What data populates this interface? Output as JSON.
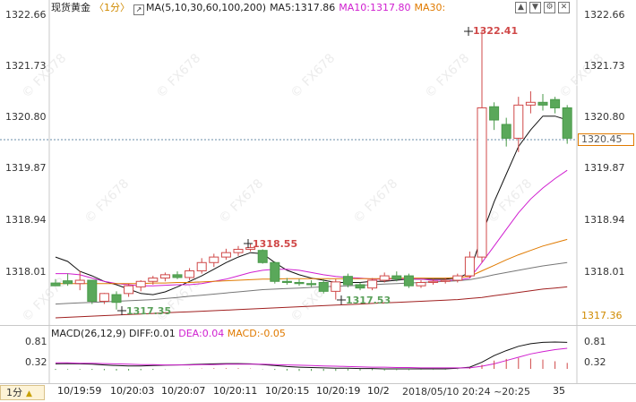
{
  "header": {
    "symbol": "现货黄金",
    "interval": "〈1分〉",
    "ma_title": "MA(5,10,30,60,100,200)",
    "ma5": "MA5:1317.86",
    "ma10": "MA10:1317.80",
    "ma30": "MA30:"
  },
  "price_axis": {
    "left_ticks": [
      "1322.66",
      "1321.73",
      "1320.80",
      "1319.87",
      "1318.94",
      "1318.01"
    ],
    "right_ticks": [
      "1322.66",
      "1321.73",
      "1320.80",
      "1319.87",
      "1318.94",
      "1318.01"
    ],
    "last_price": "1320.45",
    "right_bottom_label": "1317.36"
  },
  "annotations": {
    "high": "1322.41",
    "mid_high": "1318.55",
    "low1": "1317.35",
    "low2": "1317.53"
  },
  "macd": {
    "title": "MACD(26,12,9)",
    "diff": "DIFF:0.01",
    "dea": "DEA:0.04",
    "macd": "MACD:-0.05",
    "left_ticks": [
      "0.81",
      "0.32"
    ],
    "right_ticks": [
      "0.81",
      "0.32"
    ]
  },
  "footer": {
    "timeframe": "1分",
    "x_labels": [
      "10/19:59",
      "10/20:03",
      "10/20:07",
      "10/20:11",
      "10/20:15",
      "10/20:19",
      "10/2"
    ],
    "range_label": "2018/05/10 20:24 ~20:25",
    "tail_label": "35"
  },
  "chart_data": {
    "type": "candlestick",
    "ylim": [
      1317.3,
      1322.75
    ],
    "candles": [
      {
        "o": 1317.83,
        "h": 1317.9,
        "l": 1317.78,
        "c": 1317.78
      },
      {
        "o": 1317.87,
        "h": 1318.0,
        "l": 1317.78,
        "c": 1317.82
      },
      {
        "o": 1317.82,
        "h": 1318.05,
        "l": 1317.7,
        "c": 1317.88
      },
      {
        "o": 1317.88,
        "h": 1317.88,
        "l": 1317.45,
        "c": 1317.5
      },
      {
        "o": 1317.5,
        "h": 1317.65,
        "l": 1317.45,
        "c": 1317.64
      },
      {
        "o": 1317.62,
        "h": 1317.68,
        "l": 1317.35,
        "c": 1317.48
      },
      {
        "o": 1317.64,
        "h": 1317.82,
        "l": 1317.58,
        "c": 1317.78
      },
      {
        "o": 1317.76,
        "h": 1317.88,
        "l": 1317.68,
        "c": 1317.86
      },
      {
        "o": 1317.86,
        "h": 1317.96,
        "l": 1317.8,
        "c": 1317.92
      },
      {
        "o": 1317.92,
        "h": 1318.02,
        "l": 1317.86,
        "c": 1317.98
      },
      {
        "o": 1317.98,
        "h": 1318.04,
        "l": 1317.9,
        "c": 1317.93
      },
      {
        "o": 1317.93,
        "h": 1318.1,
        "l": 1317.88,
        "c": 1318.05
      },
      {
        "o": 1318.05,
        "h": 1318.28,
        "l": 1318.0,
        "c": 1318.2
      },
      {
        "o": 1318.2,
        "h": 1318.36,
        "l": 1318.12,
        "c": 1318.3
      },
      {
        "o": 1318.3,
        "h": 1318.45,
        "l": 1318.25,
        "c": 1318.38
      },
      {
        "o": 1318.38,
        "h": 1318.5,
        "l": 1318.32,
        "c": 1318.44
      },
      {
        "o": 1318.44,
        "h": 1318.55,
        "l": 1318.4,
        "c": 1318.47
      },
      {
        "o": 1318.42,
        "h": 1318.44,
        "l": 1318.18,
        "c": 1318.2
      },
      {
        "o": 1318.2,
        "h": 1318.22,
        "l": 1317.82,
        "c": 1317.86
      },
      {
        "o": 1317.86,
        "h": 1317.92,
        "l": 1317.8,
        "c": 1317.84
      },
      {
        "o": 1317.84,
        "h": 1317.9,
        "l": 1317.78,
        "c": 1317.82
      },
      {
        "o": 1317.82,
        "h": 1317.88,
        "l": 1317.76,
        "c": 1317.8
      },
      {
        "o": 1317.84,
        "h": 1317.9,
        "l": 1317.64,
        "c": 1317.68
      },
      {
        "o": 1317.68,
        "h": 1317.9,
        "l": 1317.53,
        "c": 1317.85
      },
      {
        "o": 1317.95,
        "h": 1318.0,
        "l": 1317.75,
        "c": 1317.8
      },
      {
        "o": 1317.8,
        "h": 1317.84,
        "l": 1317.7,
        "c": 1317.74
      },
      {
        "o": 1317.74,
        "h": 1317.92,
        "l": 1317.7,
        "c": 1317.88
      },
      {
        "o": 1317.88,
        "h": 1318.02,
        "l": 1317.84,
        "c": 1317.96
      },
      {
        "o": 1317.96,
        "h": 1318.04,
        "l": 1317.86,
        "c": 1317.9
      },
      {
        "o": 1317.96,
        "h": 1318.0,
        "l": 1317.74,
        "c": 1317.78
      },
      {
        "o": 1317.78,
        "h": 1317.88,
        "l": 1317.74,
        "c": 1317.84
      },
      {
        "o": 1317.84,
        "h": 1317.9,
        "l": 1317.8,
        "c": 1317.86
      },
      {
        "o": 1317.86,
        "h": 1317.92,
        "l": 1317.82,
        "c": 1317.88
      },
      {
        "o": 1317.88,
        "h": 1318.0,
        "l": 1317.84,
        "c": 1317.96
      },
      {
        "o": 1317.96,
        "h": 1318.4,
        "l": 1317.92,
        "c": 1318.3
      },
      {
        "o": 1318.3,
        "h": 1322.41,
        "l": 1318.2,
        "c": 1321.0
      },
      {
        "o": 1321.02,
        "h": 1321.1,
        "l": 1320.6,
        "c": 1320.78
      },
      {
        "o": 1320.7,
        "h": 1320.82,
        "l": 1320.3,
        "c": 1320.45
      },
      {
        "o": 1320.45,
        "h": 1321.2,
        "l": 1320.2,
        "c": 1321.05
      },
      {
        "o": 1321.05,
        "h": 1321.3,
        "l": 1320.9,
        "c": 1321.1
      },
      {
        "o": 1321.1,
        "h": 1321.25,
        "l": 1320.95,
        "c": 1321.05
      },
      {
        "o": 1321.15,
        "h": 1321.2,
        "l": 1320.9,
        "c": 1321.0
      },
      {
        "o": 1321.0,
        "h": 1321.05,
        "l": 1320.35,
        "c": 1320.45
      }
    ],
    "ma_series": [
      {
        "color": "#111111",
        "values": [
          1318.3,
          1318.22,
          1318.04,
          1317.96,
          1317.86,
          1317.8,
          1317.72,
          1317.64,
          1317.62,
          1317.67,
          1317.76,
          1317.86,
          1317.96,
          1318.08,
          1318.2,
          1318.3,
          1318.38,
          1318.36,
          1318.2,
          1318.06,
          1317.98,
          1317.92,
          1317.88,
          1317.84,
          1317.84,
          1317.84,
          1317.86,
          1317.86,
          1317.88,
          1317.9,
          1317.9,
          1317.9,
          1317.9,
          1317.92,
          1318.02,
          1318.7,
          1319.3,
          1319.8,
          1320.3,
          1320.6,
          1320.85,
          1320.85,
          1320.78
        ]
      },
      {
        "color": "#d01fd0",
        "values": [
          1318.0,
          1318.0,
          1317.98,
          1317.92,
          1317.86,
          1317.82,
          1317.8,
          1317.78,
          1317.78,
          1317.79,
          1317.8,
          1317.8,
          1317.82,
          1317.86,
          1317.9,
          1317.96,
          1318.02,
          1318.06,
          1318.08,
          1318.08,
          1318.06,
          1318.02,
          1317.98,
          1317.95,
          1317.93,
          1317.92,
          1317.9,
          1317.9,
          1317.9,
          1317.9,
          1317.9,
          1317.88,
          1317.88,
          1317.88,
          1317.92,
          1318.2,
          1318.5,
          1318.8,
          1319.1,
          1319.35,
          1319.55,
          1319.72,
          1319.87
        ]
      },
      {
        "color": "#e07a00",
        "values": [
          1317.82,
          1317.82,
          1317.82,
          1317.82,
          1317.82,
          1317.82,
          1317.82,
          1317.82,
          1317.83,
          1317.83,
          1317.84,
          1317.84,
          1317.85,
          1317.86,
          1317.87,
          1317.88,
          1317.89,
          1317.9,
          1317.9,
          1317.91,
          1317.91,
          1317.91,
          1317.91,
          1317.91,
          1317.91,
          1317.91,
          1317.91,
          1317.91,
          1317.92,
          1317.92,
          1317.92,
          1317.92,
          1317.92,
          1317.93,
          1317.95,
          1318.05,
          1318.15,
          1318.25,
          1318.34,
          1318.42,
          1318.5,
          1318.56,
          1318.62
        ]
      },
      {
        "color": "#777777",
        "values": [
          1317.45,
          1317.46,
          1317.47,
          1317.48,
          1317.49,
          1317.5,
          1317.51,
          1317.52,
          1317.53,
          1317.55,
          1317.57,
          1317.59,
          1317.61,
          1317.63,
          1317.65,
          1317.67,
          1317.69,
          1317.71,
          1317.72,
          1317.73,
          1317.74,
          1317.75,
          1317.76,
          1317.77,
          1317.78,
          1317.79,
          1317.8,
          1317.81,
          1317.82,
          1317.83,
          1317.84,
          1317.85,
          1317.86,
          1317.87,
          1317.89,
          1317.93,
          1317.98,
          1318.02,
          1318.06,
          1318.1,
          1318.14,
          1318.17,
          1318.2
        ]
      },
      {
        "color": "#a02020",
        "values": [
          1317.2,
          1317.21,
          1317.22,
          1317.23,
          1317.24,
          1317.25,
          1317.26,
          1317.27,
          1317.28,
          1317.29,
          1317.3,
          1317.31,
          1317.32,
          1317.33,
          1317.34,
          1317.35,
          1317.36,
          1317.37,
          1317.38,
          1317.39,
          1317.4,
          1317.41,
          1317.42,
          1317.43,
          1317.44,
          1317.45,
          1317.46,
          1317.47,
          1317.48,
          1317.49,
          1317.5,
          1317.51,
          1317.52,
          1317.53,
          1317.55,
          1317.57,
          1317.6,
          1317.63,
          1317.66,
          1317.69,
          1317.72,
          1317.74,
          1317.76
        ]
      }
    ],
    "macd_lines": [
      {
        "color": "#111111",
        "values": [
          0.15,
          0.16,
          0.15,
          0.14,
          0.12,
          0.1,
          0.09,
          0.09,
          0.1,
          0.11,
          0.12,
          0.13,
          0.14,
          0.15,
          0.16,
          0.16,
          0.15,
          0.13,
          0.1,
          0.07,
          0.05,
          0.04,
          0.03,
          0.02,
          0.02,
          0.01,
          0.01,
          0.0,
          0.0,
          0.0,
          0.0,
          0.0,
          0.0,
          0.02,
          0.05,
          0.2,
          0.4,
          0.55,
          0.68,
          0.76,
          0.8,
          0.81,
          0.8
        ]
      },
      {
        "color": "#d01fd0",
        "values": [
          0.18,
          0.18,
          0.17,
          0.17,
          0.16,
          0.15,
          0.14,
          0.13,
          0.13,
          0.12,
          0.12,
          0.12,
          0.13,
          0.13,
          0.14,
          0.14,
          0.14,
          0.14,
          0.13,
          0.12,
          0.11,
          0.1,
          0.09,
          0.08,
          0.07,
          0.06,
          0.05,
          0.05,
          0.04,
          0.04,
          0.03,
          0.03,
          0.03,
          0.03,
          0.03,
          0.08,
          0.15,
          0.25,
          0.35,
          0.45,
          0.52,
          0.58,
          0.62
        ]
      }
    ],
    "macd_ylim": [
      -0.05,
      0.9
    ]
  }
}
